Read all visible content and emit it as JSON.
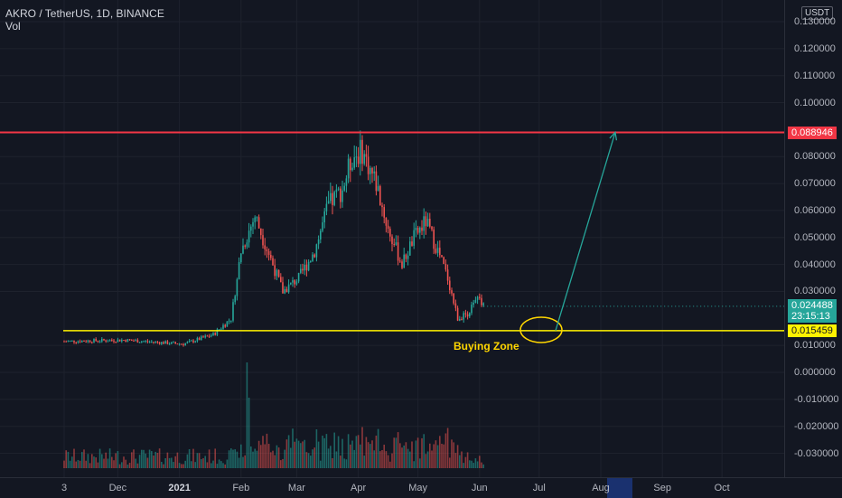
{
  "legend": {
    "symbol": "AKRO / TetherUS, 1D, BINANCE",
    "volume": "Vol"
  },
  "price_axis": {
    "unit": "USDT",
    "ticks": [
      {
        "v": 0.13,
        "label": "0.130000"
      },
      {
        "v": 0.12,
        "label": "0.120000"
      },
      {
        "v": 0.11,
        "label": "0.110000"
      },
      {
        "v": 0.1,
        "label": "0.100000"
      },
      {
        "v": 0.08,
        "label": "0.080000"
      },
      {
        "v": 0.07,
        "label": "0.070000"
      },
      {
        "v": 0.06,
        "label": "0.060000"
      },
      {
        "v": 0.05,
        "label": "0.050000"
      },
      {
        "v": 0.04,
        "label": "0.040000"
      },
      {
        "v": 0.03,
        "label": "0.030000"
      },
      {
        "v": 0.01,
        "label": "0.010000"
      },
      {
        "v": 0.0,
        "label": "0.000000"
      },
      {
        "v": -0.01,
        "label": "-0.010000"
      },
      {
        "v": -0.02,
        "label": "-0.020000"
      },
      {
        "v": -0.03,
        "label": "-0.030000"
      }
    ]
  },
  "time_axis": {
    "labels": [
      {
        "t": 0,
        "label": "3",
        "bold": false
      },
      {
        "t": 27,
        "label": "Dec",
        "bold": false
      },
      {
        "t": 58,
        "label": "2021",
        "bold": true
      },
      {
        "t": 89,
        "label": "Feb",
        "bold": false
      },
      {
        "t": 117,
        "label": "Mar",
        "bold": false
      },
      {
        "t": 148,
        "label": "Apr",
        "bold": false
      },
      {
        "t": 178,
        "label": "May",
        "bold": false
      },
      {
        "t": 209,
        "label": "Jun",
        "bold": false
      },
      {
        "t": 239,
        "label": "Jul",
        "bold": false
      },
      {
        "t": 270,
        "label": "Aug",
        "bold": false
      },
      {
        "t": 301,
        "label": "Sep",
        "bold": false
      },
      {
        "t": 331,
        "label": "Oct",
        "bold": false
      }
    ]
  },
  "levels": {
    "resistance": {
      "price": 0.088946,
      "label": "0.088946",
      "color": "#f23645"
    },
    "support": {
      "price": 0.015459,
      "label": "0.015459",
      "color": "#fff200"
    }
  },
  "last_price": {
    "price": 0.024488,
    "label": "0.024488",
    "countdown": "23:15:13",
    "color": "#26a69a"
  },
  "annotation": {
    "text": "Buying Zone"
  },
  "colors": {
    "up": "#26a69a",
    "down": "#ef5350",
    "arrow": "#26a69a"
  },
  "chart_data": {
    "type": "candlestick",
    "interval": "1D",
    "symbol": "AKRO / TetherUS",
    "x_axis_days_from": "Nov 3",
    "ohlc_anchors": [
      {
        "t": 0,
        "close": 0.0115
      },
      {
        "t": 30,
        "close": 0.012
      },
      {
        "t": 60,
        "close": 0.0105
      },
      {
        "t": 75,
        "close": 0.014
      },
      {
        "t": 84,
        "close": 0.02
      },
      {
        "t": 89,
        "close": 0.045
      },
      {
        "t": 96,
        "close": 0.058
      },
      {
        "t": 104,
        "close": 0.042
      },
      {
        "t": 110,
        "close": 0.03
      },
      {
        "t": 118,
        "close": 0.035
      },
      {
        "t": 126,
        "close": 0.045
      },
      {
        "t": 133,
        "close": 0.062
      },
      {
        "t": 140,
        "close": 0.068
      },
      {
        "t": 145,
        "close": 0.08
      },
      {
        "t": 150,
        "close": 0.082
      },
      {
        "t": 157,
        "close": 0.07
      },
      {
        "t": 163,
        "close": 0.053
      },
      {
        "t": 170,
        "close": 0.04
      },
      {
        "t": 176,
        "close": 0.05
      },
      {
        "t": 182,
        "close": 0.056
      },
      {
        "t": 188,
        "close": 0.045
      },
      {
        "t": 193,
        "close": 0.035
      },
      {
        "t": 198,
        "close": 0.02
      },
      {
        "t": 203,
        "close": 0.022
      },
      {
        "t": 208,
        "close": 0.027
      },
      {
        "t": 211,
        "close": 0.0245
      }
    ],
    "volume_spikes": [
      {
        "t": 92,
        "rel": 0.9
      },
      {
        "t": 93,
        "rel": 0.6
      },
      {
        "t": 150,
        "rel": 0.35
      },
      {
        "t": 196,
        "rel": 0.22
      }
    ],
    "projection": {
      "from_t": 216,
      "from_price": 0.0155,
      "to_t": 253,
      "to_price": 0.089
    }
  }
}
